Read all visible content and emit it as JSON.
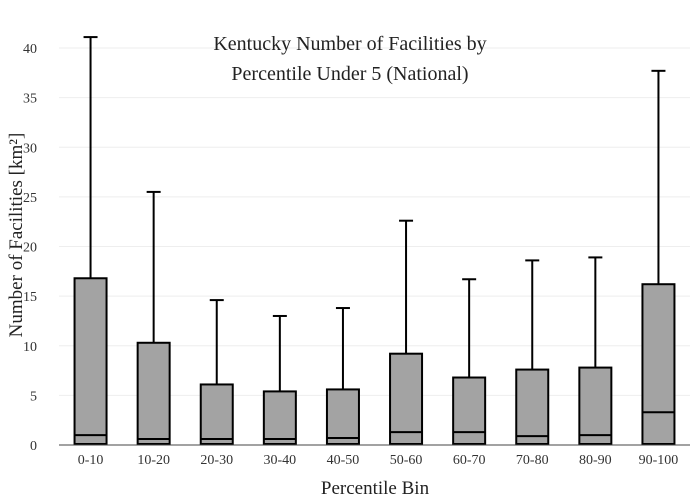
{
  "chart_data": {
    "type": "box",
    "title_lines": [
      "Kentucky Number of Facilities by",
      "Percentile Under 5 (National)"
    ],
    "xlabel": "Percentile Bin",
    "ylabel": "Number of Facilities  [km²]",
    "ylim": [
      0,
      42
    ],
    "yticks": [
      0,
      5,
      10,
      15,
      20,
      25,
      30,
      35,
      40
    ],
    "grid": true,
    "legend": "none",
    "categories": [
      "0-10",
      "10-20",
      "20-30",
      "30-40",
      "40-50",
      "50-60",
      "60-70",
      "70-80",
      "80-90",
      "90-100"
    ],
    "boxes": [
      {
        "min": 0,
        "q1": 0.1,
        "median": 1.0,
        "q3": 16.8,
        "max": 41.1
      },
      {
        "min": 0,
        "q1": 0.1,
        "median": 0.6,
        "q3": 10.3,
        "max": 25.5
      },
      {
        "min": 0,
        "q1": 0.1,
        "median": 0.6,
        "q3": 6.1,
        "max": 14.6
      },
      {
        "min": 0,
        "q1": 0.1,
        "median": 0.6,
        "q3": 5.4,
        "max": 13.0
      },
      {
        "min": 0,
        "q1": 0.1,
        "median": 0.7,
        "q3": 5.6,
        "max": 13.8
      },
      {
        "min": 0,
        "q1": 0.1,
        "median": 1.3,
        "q3": 9.2,
        "max": 22.6
      },
      {
        "min": 0,
        "q1": 0.1,
        "median": 1.3,
        "q3": 6.8,
        "max": 16.7
      },
      {
        "min": 0,
        "q1": 0.1,
        "median": 0.9,
        "q3": 7.6,
        "max": 18.6
      },
      {
        "min": 0,
        "q1": 0.1,
        "median": 1.0,
        "q3": 7.8,
        "max": 18.9
      },
      {
        "min": 0,
        "q1": 0.1,
        "median": 3.3,
        "q3": 16.2,
        "max": 37.7
      }
    ],
    "colors": {
      "box_fill": "#a3a3a3",
      "box_stroke": "#000000",
      "grid": "#eeeeee"
    }
  }
}
